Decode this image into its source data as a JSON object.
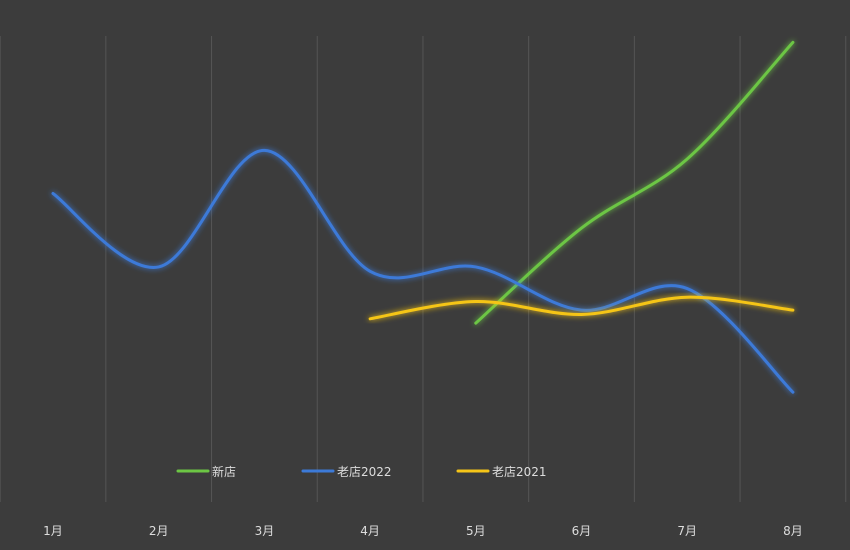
{
  "chart_data": {
    "type": "line",
    "title": "",
    "xlabel": "",
    "ylabel": "",
    "categories": [
      "1月",
      "2月",
      "3月",
      "4月",
      "5月",
      "6月",
      "7月",
      "8月"
    ],
    "ylim": [
      0,
      100
    ],
    "grid": "vertical",
    "legend_position": "bottom",
    "smooth": true,
    "background": "#3c3c3c",
    "gridline_color": "#555555",
    "text_color": "#dddddd",
    "series": [
      {
        "name": "新店",
        "color": "#6cc644",
        "values": [
          null,
          null,
          null,
          null,
          34,
          56,
          72,
          99
        ]
      },
      {
        "name": "老店2022",
        "color": "#3c7ad8",
        "values": [
          64,
          47,
          74,
          46,
          47,
          37,
          42,
          18
        ]
      },
      {
        "name": "老店2021",
        "color": "#f5c518",
        "values": [
          null,
          null,
          null,
          35,
          39,
          36,
          40,
          37
        ]
      }
    ]
  }
}
